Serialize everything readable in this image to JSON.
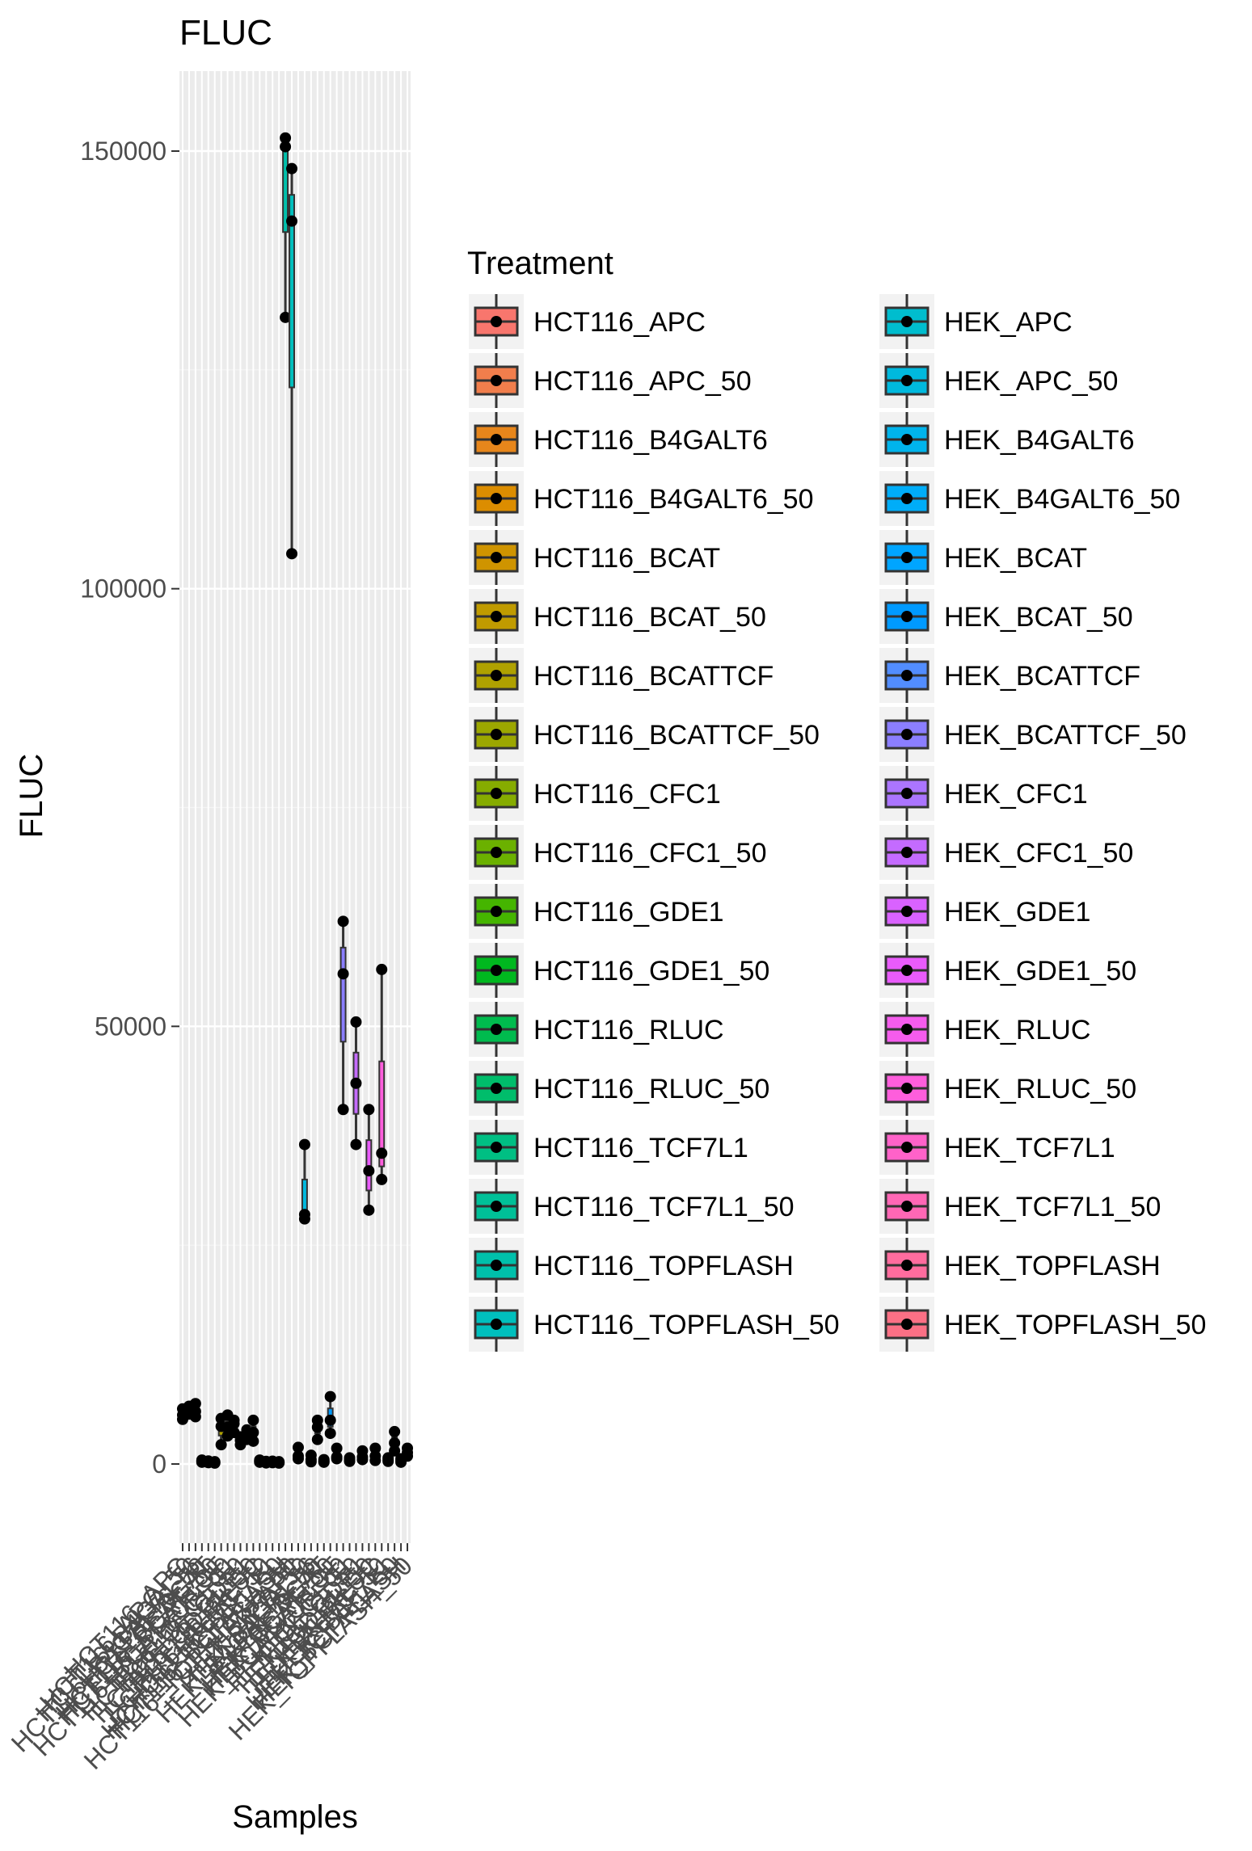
{
  "chart_data": {
    "type": "boxplot",
    "title": "FLUC",
    "xlabel": "Samples",
    "ylabel": "FLUC",
    "y_ticks": [
      0,
      50000,
      100000,
      150000
    ],
    "y_tick_labels": [
      "0",
      "50000",
      "100000",
      "150000"
    ],
    "ylim": [
      -8500,
      159500
    ],
    "grid": true,
    "legend_title": "Treatment",
    "legend_placement": "right",
    "series": [
      {
        "name": "HCT116_APC",
        "color": "#F8766D",
        "values": [
          5600,
          6300,
          5100
        ]
      },
      {
        "name": "HCT116_APC_50",
        "color": "#F17E4C",
        "values": [
          6600,
          5700,
          6200
        ]
      },
      {
        "name": "HCT116_B4GALT6",
        "color": "#E7861B",
        "values": [
          6900,
          5400,
          6000
        ]
      },
      {
        "name": "HCT116_B4GALT6_50",
        "color": "#DC8D00",
        "values": [
          200,
          450,
          300
        ]
      },
      {
        "name": "HCT116_BCAT",
        "color": "#CF9400",
        "values": [
          150,
          350,
          250
        ]
      },
      {
        "name": "HCT116_BCAT_50",
        "color": "#C09B00",
        "values": [
          100,
          260,
          180
        ]
      },
      {
        "name": "HCT116_BCATTCF",
        "color": "#AFA100",
        "values": [
          2200,
          4300,
          5200
        ]
      },
      {
        "name": "HCT116_BCATTCF_50",
        "color": "#9CA700",
        "values": [
          3200,
          5600,
          4200
        ]
      },
      {
        "name": "HCT116_CFC1",
        "color": "#86AC00",
        "values": [
          3600,
          5000,
          4600
        ]
      },
      {
        "name": "HCT116_CFC1_50",
        "color": "#6BB100",
        "values": [
          2200,
          3100,
          2700
        ]
      },
      {
        "name": "HCT116_GDE1",
        "color": "#45B500",
        "values": [
          2800,
          3900,
          3400
        ]
      },
      {
        "name": "HCT116_GDE1_50",
        "color": "#00B81F",
        "values": [
          2600,
          5000,
          3600
        ]
      },
      {
        "name": "HCT116_RLUC",
        "color": "#00BB4E",
        "values": [
          200,
          450,
          300
        ]
      },
      {
        "name": "HCT116_RLUC_50",
        "color": "#00BD6B",
        "values": [
          120,
          300,
          200
        ]
      },
      {
        "name": "HCT116_TCF7L1",
        "color": "#00BF83",
        "values": [
          150,
          320,
          230
        ]
      },
      {
        "name": "HCT116_TCF7L1_50",
        "color": "#00C098",
        "values": [
          100,
          260,
          170
        ]
      },
      {
        "name": "HCT116_TOPFLASH",
        "color": "#00C0AB",
        "values": [
          151500,
          131000,
          150500
        ]
      },
      {
        "name": "HCT116_TOPFLASH_50",
        "color": "#00BFBD",
        "values": [
          148000,
          104000,
          142000
        ]
      },
      {
        "name": "HEK_APC",
        "color": "#00BDCE",
        "values": [
          1900,
          600,
          900
        ]
      },
      {
        "name": "HEK_APC_50",
        "color": "#00B9DE",
        "values": [
          36500,
          28500,
          28000
        ]
      },
      {
        "name": "HEK_B4GALT6",
        "color": "#00B4EC",
        "values": [
          250,
          1000,
          500
        ]
      },
      {
        "name": "HEK_B4GALT6_50",
        "color": "#00ADF8",
        "values": [
          5000,
          2800,
          4200
        ]
      },
      {
        "name": "HEK_BCAT",
        "color": "#00A5FF",
        "values": [
          200,
          500,
          300
        ]
      },
      {
        "name": "HEK_BCAT_50",
        "color": "#009AFF",
        "values": [
          7700,
          3500,
          5000
        ]
      },
      {
        "name": "HEK_BCATTCF",
        "color": "#528DFF",
        "values": [
          1800,
          800,
          600
        ]
      },
      {
        "name": "HEK_BCATTCF_50",
        "color": "#8B7EFF",
        "values": [
          62000,
          56000,
          40500
        ]
      },
      {
        "name": "HEK_CFC1",
        "color": "#AB75FF",
        "values": [
          300,
          700,
          500
        ]
      },
      {
        "name": "HEK_CFC1_50",
        "color": "#C46BFF",
        "values": [
          50500,
          43500,
          36500
        ]
      },
      {
        "name": "HEK_GDE1",
        "color": "#D962FF",
        "values": [
          1500,
          500,
          800
        ]
      },
      {
        "name": "HEK_GDE1_50",
        "color": "#E95BFB",
        "values": [
          40500,
          33500,
          29000
        ]
      },
      {
        "name": "HEK_RLUC",
        "color": "#F55CED",
        "values": [
          1800,
          400,
          900
        ]
      },
      {
        "name": "HEK_RLUC_50",
        "color": "#FE5EDC",
        "values": [
          56500,
          35500,
          32500
        ]
      },
      {
        "name": "HEK_TCF7L1",
        "color": "#FF62C9",
        "values": [
          300,
          700,
          500
        ]
      },
      {
        "name": "HEK_TCF7L1_50",
        "color": "#FF67B5",
        "values": [
          3700,
          1500,
          2400
        ]
      },
      {
        "name": "HEK_TOPFLASH",
        "color": "#FF6C9E",
        "values": [
          200,
          600,
          400
        ]
      },
      {
        "name": "HEK_TOPFLASH_50",
        "color": "#FB7085",
        "values": [
          1800,
          900,
          1300
        ]
      }
    ]
  }
}
